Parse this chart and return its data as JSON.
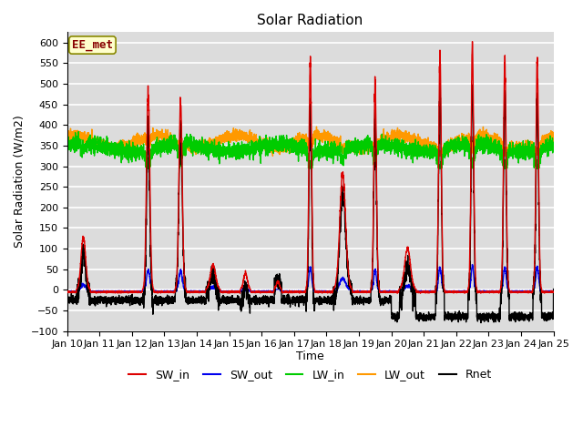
{
  "title": "Solar Radiation",
  "xlabel": "Time",
  "ylabel": "Solar Radiation (W/m2)",
  "annotation": "EE_met",
  "ylim": [
    -100,
    625
  ],
  "yticks": [
    -100,
    -50,
    0,
    50,
    100,
    150,
    200,
    250,
    300,
    350,
    400,
    450,
    500,
    550,
    600
  ],
  "x_tick_labels": [
    "Jan 10",
    "Jan 11",
    "Jan 12",
    "Jan 13",
    "Jan 14",
    "Jan 15",
    "Jan 16",
    "Jan 17",
    "Jan 18",
    "Jan 19",
    "Jan 20",
    "Jan 21",
    "Jan 22",
    "Jan 23",
    "Jan 24",
    "Jan 25"
  ],
  "bg_color": "#dcdcdc",
  "grid_color": "#ffffff",
  "SW_in_color": "#dd0000",
  "SW_out_color": "#0000ee",
  "LW_in_color": "#00cc00",
  "LW_out_color": "#ff9900",
  "Rnet_color": "#000000",
  "line_width": 1.0
}
